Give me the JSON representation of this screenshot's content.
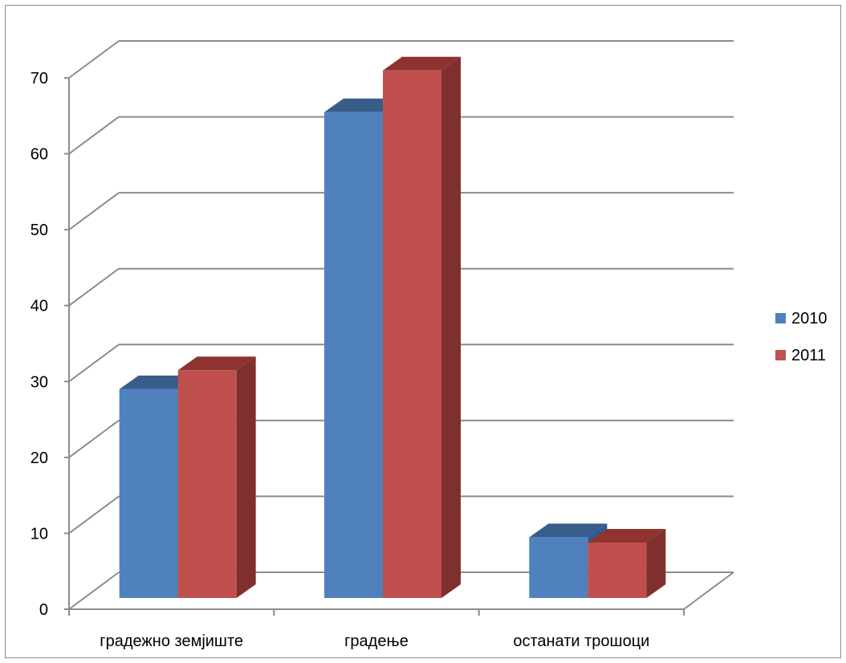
{
  "chart_data": {
    "type": "bar",
    "categories": [
      "градежно земјиште",
      "градење",
      "останати трошоци"
    ],
    "series": [
      {
        "name": "2010",
        "values": [
          27.5,
          64,
          8
        ],
        "color": "#4F81BD",
        "side_color": "#2F5A8F",
        "top_color": "#385D8A"
      },
      {
        "name": "2011",
        "values": [
          30,
          69.5,
          7.3
        ],
        "color": "#C0504D",
        "side_color": "#7F2F2D",
        "top_color": "#8E3330"
      }
    ],
    "yticks": [
      0,
      10,
      20,
      30,
      40,
      50,
      60,
      70
    ],
    "ylim": [
      0,
      70
    ],
    "grid": true,
    "legend": "right",
    "title": "",
    "xlabel": "",
    "ylabel": ""
  }
}
